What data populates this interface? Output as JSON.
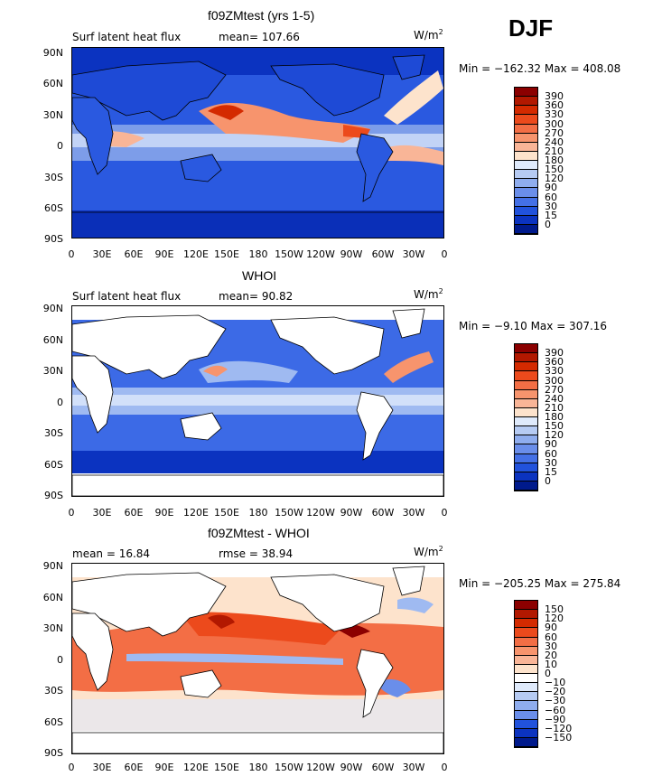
{
  "season": "DJF",
  "panels": [
    {
      "title": "f09ZMtest (yrs 1-5)",
      "left_label": "Surf latent heat flux",
      "stat_label": "mean=  107.66",
      "units": "W/m",
      "units_exp": "2",
      "minmax": "Min = −162.32  Max = 408.08",
      "colorbar": {
        "labels": [
          "390",
          "360",
          "330",
          "300",
          "270",
          "240",
          "210",
          "180",
          "150",
          "120",
          "90",
          "60",
          "30",
          "15",
          "0"
        ],
        "colors": [
          "#8b0000",
          "#b21800",
          "#d42a00",
          "#ec4a1c",
          "#f36e45",
          "#f7946d",
          "#f9b597",
          "#fde3cc",
          "#dfeafb",
          "#b6cbf3",
          "#8fadee",
          "#6a8eea",
          "#4470e6",
          "#2152dc",
          "#0b33c0",
          "#001a8c"
        ]
      }
    },
    {
      "title": "WHOI",
      "left_label": "Surf latent heat flux",
      "stat_label": "mean=   90.82",
      "units": "W/m",
      "units_exp": "2",
      "minmax": "Min =  −9.10  Max = 307.16",
      "colorbar": {
        "labels": [
          "390",
          "360",
          "330",
          "300",
          "270",
          "240",
          "210",
          "180",
          "150",
          "120",
          "90",
          "60",
          "30",
          "15",
          "0"
        ],
        "colors": [
          "#8b0000",
          "#b21800",
          "#d42a00",
          "#ec4a1c",
          "#f36e45",
          "#f7946d",
          "#f9b597",
          "#fde3cc",
          "#dfeafb",
          "#b6cbf3",
          "#8fadee",
          "#6a8eea",
          "#4470e6",
          "#2152dc",
          "#0b33c0",
          "#001a8c"
        ]
      }
    },
    {
      "title": "f09ZMtest - WHOI",
      "left_label": "mean =   16.84",
      "stat_label": "rmse =   38.94",
      "units": "W/m",
      "units_exp": "2",
      "minmax": "Min = −205.25  Max = 275.84",
      "colorbar": {
        "labels": [
          "150",
          "120",
          "90",
          "60",
          "30",
          "20",
          "10",
          "0",
          "−10",
          "−20",
          "−30",
          "−60",
          "−90",
          "−120",
          "−150"
        ],
        "colors": [
          "#8b0000",
          "#b21800",
          "#d42a00",
          "#ec4a1c",
          "#f36e45",
          "#f7946d",
          "#f9b597",
          "#fde3cc",
          "#ffffff",
          "#dfeafb",
          "#b6cbf3",
          "#8fadee",
          "#6a8eea",
          "#2152dc",
          "#0b33c0",
          "#001a8c"
        ]
      }
    }
  ],
  "lat_labels": [
    "90N",
    "60N",
    "30N",
    "0",
    "30S",
    "60S",
    "90S"
  ],
  "lon_labels": [
    "0",
    "30E",
    "60E",
    "90E",
    "120E",
    "150E",
    "180",
    "150W",
    "120W",
    "90W",
    "60W",
    "30W",
    "0"
  ],
  "map_colors": {
    "deep_blue": "#0a2fd0",
    "mid_blue": "#3c6ae6",
    "light_blue": "#9fbaf1",
    "pale": "#fde3cc",
    "orange": "#f36e45",
    "red": "#d42a00",
    "land": "#ffffff"
  }
}
